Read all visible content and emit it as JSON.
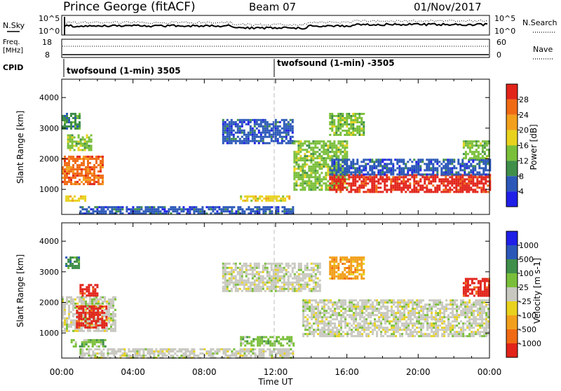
{
  "header": {
    "station": "Prince George (fitACF)",
    "beam": "Beam 07",
    "date": "01/Nov/2017"
  },
  "strip_labels": {
    "nsky": "N.Sky",
    "nsky_top": "10^5",
    "nsky_bottom": "10^0",
    "nsearch": "N.Search",
    "nsearch_top": "10^5",
    "nsearch_bottom": "10^0",
    "freq": "Freq.",
    "freq_unit": "[MHz]",
    "freq_top": "18",
    "freq_bottom": "8",
    "nave": "Nave",
    "nave_top": "60",
    "nave_bottom": "0",
    "cpid": "CPID",
    "cpid_1": "twofsound (1-min) 3505",
    "cpid_2": "twofsound (1-min) -3505"
  },
  "time_axis": {
    "label": "Time UT",
    "ticks": [
      "00:00",
      "04:00",
      "08:00",
      "12:00",
      "16:00",
      "20:00",
      "00:00"
    ]
  },
  "colors": {
    "power_scale": [
      "#1f1fe8",
      "#2b58b8",
      "#3f8f4a",
      "#7abf3a",
      "#e8d21e",
      "#f2a01c",
      "#f06a14",
      "#e2231a"
    ],
    "velocity_scale": [
      "#1f1fe8",
      "#2b58b8",
      "#3f8f4a",
      "#7abf3a",
      "#c8c8c0",
      "#e8d21e",
      "#f2a01c",
      "#f06a14",
      "#e2231a"
    ],
    "ground_scatter": "#c8c8c0"
  },
  "chart_data": [
    {
      "type": "heatmap",
      "panel": "power",
      "ylabel": "Slant Range [km]",
      "xlabel": "Time UT",
      "yticks": [
        1000,
        2000,
        3000,
        4000
      ],
      "ylim": [
        180,
        4600
      ],
      "xlim_hours": [
        0,
        24
      ],
      "colorbar_label": "Power [dB]",
      "colorbar_ticks": [
        "4",
        "8",
        "12",
        "16",
        "20",
        "24",
        "28"
      ],
      "regions": [
        {
          "t0": 0.0,
          "t1": 2.3,
          "r0": 1200,
          "r1": 2100,
          "level": 6
        },
        {
          "t0": 0.2,
          "t1": 1.3,
          "r0": 600,
          "r1": 800,
          "level": 4
        },
        {
          "t0": 0.3,
          "t1": 1.6,
          "r0": 2300,
          "r1": 2800,
          "level": 3
        },
        {
          "t0": 0.0,
          "t1": 1.0,
          "r0": 3000,
          "r1": 3500,
          "level": 2
        },
        {
          "t0": 1.0,
          "t1": 13.0,
          "r0": 200,
          "r1": 450,
          "level": 1
        },
        {
          "t0": 9.0,
          "t1": 13.0,
          "r0": 2500,
          "r1": 3300,
          "level": 1
        },
        {
          "t0": 10.0,
          "t1": 12.8,
          "r0": 600,
          "r1": 800,
          "level": 4
        },
        {
          "t0": 13.0,
          "t1": 16.0,
          "r0": 1000,
          "r1": 2600,
          "level": 3
        },
        {
          "t0": 15.0,
          "t1": 24.0,
          "r0": 900,
          "r1": 1500,
          "level": 7
        },
        {
          "t0": 15.0,
          "t1": 24.0,
          "r0": 1500,
          "r1": 2000,
          "level": 1
        },
        {
          "t0": 15.0,
          "t1": 17.0,
          "r0": 2800,
          "r1": 3500,
          "level": 3
        },
        {
          "t0": 22.5,
          "t1": 24.0,
          "r0": 2000,
          "r1": 2600,
          "level": 3
        }
      ]
    },
    {
      "type": "heatmap",
      "panel": "velocity",
      "ylabel": "Slant Range [km]",
      "xlabel": "Time UT",
      "yticks": [
        1000,
        2000,
        3000,
        4000
      ],
      "ylim": [
        180,
        4600
      ],
      "xlim_hours": [
        0,
        24
      ],
      "colorbar_label": "Velocity [m s-1]",
      "colorbar_ticks": [
        "1000",
        "500",
        "100",
        "25",
        "-25",
        "-100",
        "-500",
        "-1000"
      ],
      "regions": [
        {
          "t0": 0.0,
          "t1": 3.0,
          "r0": 1100,
          "r1": 2200,
          "level": 4
        },
        {
          "t0": 0.8,
          "t1": 2.5,
          "r0": 1200,
          "r1": 1900,
          "level": 8
        },
        {
          "t0": 1.0,
          "t1": 2.0,
          "r0": 2200,
          "r1": 2600,
          "level": 8
        },
        {
          "t0": 0.2,
          "t1": 1.0,
          "r0": 3100,
          "r1": 3500,
          "level": 2
        },
        {
          "t0": 0.5,
          "t1": 2.5,
          "r0": 550,
          "r1": 800,
          "level": 3
        },
        {
          "t0": 1.0,
          "t1": 13.0,
          "r0": 200,
          "r1": 500,
          "level": 4
        },
        {
          "t0": 9.0,
          "t1": 14.5,
          "r0": 2400,
          "r1": 3300,
          "level": 4
        },
        {
          "t0": 13.5,
          "t1": 24.0,
          "r0": 900,
          "r1": 2100,
          "level": 4
        },
        {
          "t0": 10.0,
          "t1": 13.0,
          "r0": 600,
          "r1": 900,
          "level": 3
        },
        {
          "t0": 15.0,
          "t1": 17.0,
          "r0": 2800,
          "r1": 3500,
          "level": 6
        },
        {
          "t0": 22.5,
          "t1": 24.0,
          "r0": 2200,
          "r1": 2800,
          "level": 8
        }
      ]
    }
  ]
}
